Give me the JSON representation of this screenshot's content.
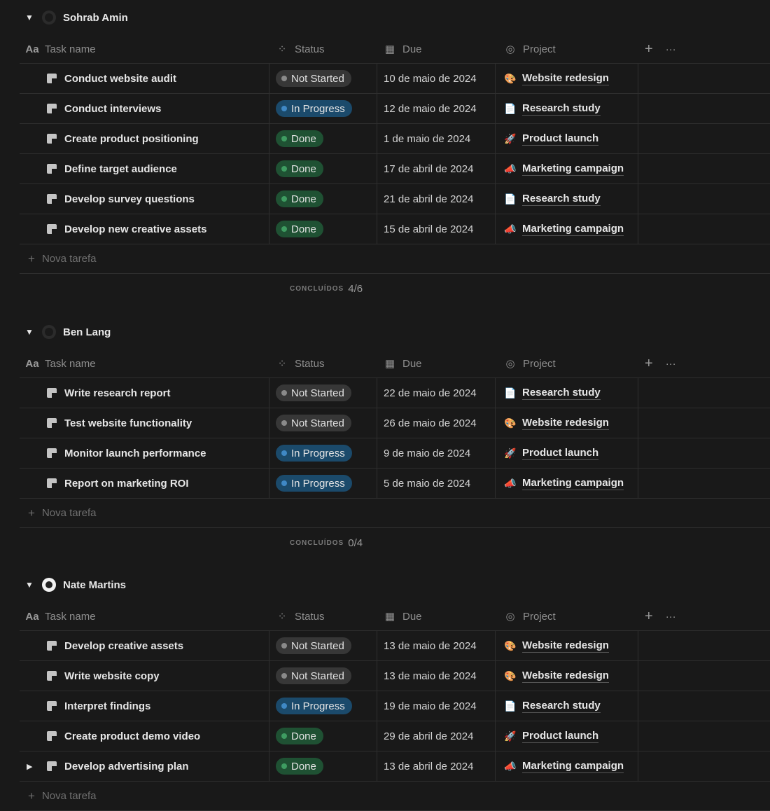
{
  "columns": {
    "name_icon": "Aa",
    "name": "Task name",
    "status": "Status",
    "due": "Due",
    "project": "Project",
    "add": "+",
    "more": "···"
  },
  "new_task_label": "Nova tarefa",
  "done_label": "CONCLUÍDOS",
  "colors": {
    "background": "#191919",
    "not_started": "#373737",
    "in_progress": "#1b4a6b",
    "done": "#1f5133"
  },
  "groups": [
    {
      "name": "Sohrab Amin",
      "done_count": "4/6",
      "tasks": [
        {
          "title": "Conduct website audit",
          "status": "Not Started",
          "due": "10 de maio de 2024",
          "project": "Website redesign"
        },
        {
          "title": "Conduct interviews",
          "status": "In Progress",
          "due": "12 de maio de 2024",
          "project": "Research study"
        },
        {
          "title": "Create product positioning",
          "status": "Done",
          "due": "1 de maio de 2024",
          "project": "Product launch"
        },
        {
          "title": "Define target audience",
          "status": "Done",
          "due": "17 de abril de 2024",
          "project": "Marketing campaign"
        },
        {
          "title": "Develop survey questions",
          "status": "Done",
          "due": "21 de abril de 2024",
          "project": "Research study"
        },
        {
          "title": "Develop new creative assets",
          "status": "Done",
          "due": "15 de abril de 2024",
          "project": "Marketing campaign"
        }
      ]
    },
    {
      "name": "Ben Lang",
      "done_count": "0/4",
      "tasks": [
        {
          "title": "Write research report",
          "status": "Not Started",
          "due": "22 de maio de 2024",
          "project": "Research study"
        },
        {
          "title": "Test website functionality",
          "status": "Not Started",
          "due": "26 de maio de 2024",
          "project": "Website redesign"
        },
        {
          "title": "Monitor launch performance",
          "status": "In Progress",
          "due": "9 de maio de 2024",
          "project": "Product launch"
        },
        {
          "title": "Report on marketing ROI",
          "status": "In Progress",
          "due": "5 de maio de 2024",
          "project": "Marketing campaign"
        }
      ]
    },
    {
      "name": "Nate Martins",
      "tasks": [
        {
          "title": "Develop creative assets",
          "status": "Not Started",
          "due": "13 de maio de 2024",
          "project": "Website redesign"
        },
        {
          "title": "Write website copy",
          "status": "Not Started",
          "due": "13 de maio de 2024",
          "project": "Website redesign"
        },
        {
          "title": "Interpret findings",
          "status": "In Progress",
          "due": "19 de maio de 2024",
          "project": "Research study"
        },
        {
          "title": "Create product demo video",
          "status": "Done",
          "due": "29 de abril de 2024",
          "project": "Product launch"
        },
        {
          "title": "Develop advertising plan",
          "status": "Done",
          "due": "13 de abril de 2024",
          "project": "Marketing campaign",
          "has_subitems": true
        }
      ]
    }
  ]
}
